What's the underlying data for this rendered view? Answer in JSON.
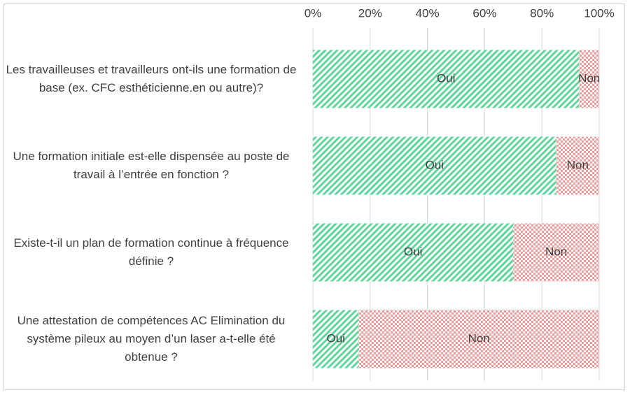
{
  "chart_data": {
    "type": "stacked_bar_horizontal",
    "categories": [
      "Les travailleuses et travailleurs ont-ils une formation de base (ex. CFC esthéticienne.en ou autre)?",
      "Une formation initiale est-elle dispensée au poste de travail à l’entrée en fonction ?",
      "Existe-t-il un plan de formation continue à fréquence définie ?",
      "Une attestation de compétences AC Elimination du système pileux au moyen d’un laser a-t-elle été obtenue ?"
    ],
    "series": [
      {
        "name": "Oui",
        "color": "#5fd49c",
        "pattern": "diagonal-stripes",
        "values": [
          93,
          85,
          70,
          16
        ]
      },
      {
        "name": "Non",
        "color": "#f29a9a",
        "pattern": "checker",
        "values": [
          7,
          15,
          30,
          84
        ]
      }
    ],
    "xlim": [
      0,
      100
    ],
    "xticks": [
      {
        "value": 0,
        "label": "0%"
      },
      {
        "value": 20,
        "label": "20%"
      },
      {
        "value": 40,
        "label": "40%"
      },
      {
        "value": 60,
        "label": "60%"
      },
      {
        "value": 80,
        "label": "80%"
      },
      {
        "value": 100,
        "label": "100%"
      }
    ],
    "grid": true
  }
}
